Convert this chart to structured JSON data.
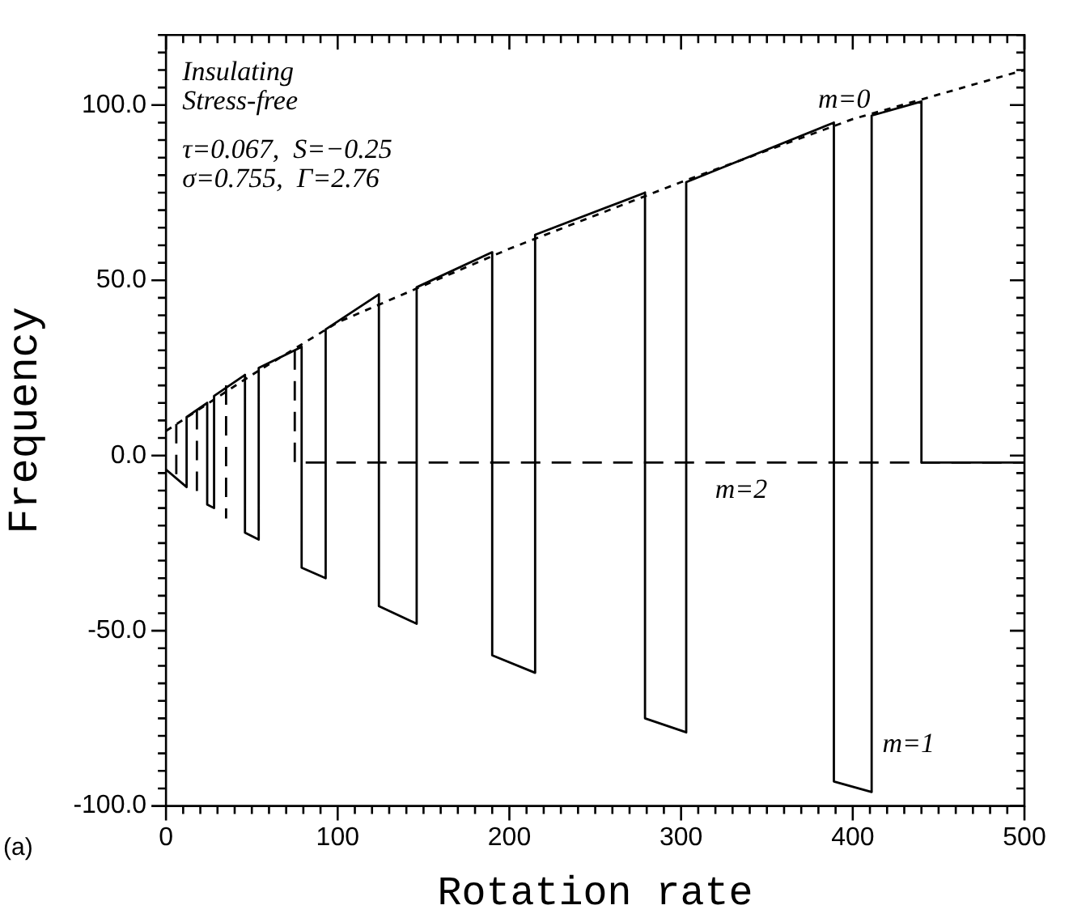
{
  "chart_data": {
    "type": "line",
    "xlabel": "Rotation rate",
    "ylabel": "Frequency",
    "xlim": [
      0,
      500
    ],
    "ylim": [
      -100,
      120
    ],
    "xticks": [
      {
        "value": 0,
        "label": "0"
      },
      {
        "value": 10,
        "label": null
      },
      {
        "value": 20,
        "label": null
      },
      {
        "value": 30,
        "label": null
      },
      {
        "value": 40,
        "label": null
      },
      {
        "value": 50,
        "label": null
      },
      {
        "value": 60,
        "label": null
      },
      {
        "value": 70,
        "label": null
      },
      {
        "value": 80,
        "label": null
      },
      {
        "value": 90,
        "label": null
      },
      {
        "value": 100,
        "label": "100"
      },
      {
        "value": 110,
        "label": null
      },
      {
        "value": 120,
        "label": null
      },
      {
        "value": 130,
        "label": null
      },
      {
        "value": 140,
        "label": null
      },
      {
        "value": 150,
        "label": null
      },
      {
        "value": 160,
        "label": null
      },
      {
        "value": 170,
        "label": null
      },
      {
        "value": 180,
        "label": null
      },
      {
        "value": 190,
        "label": null
      },
      {
        "value": 200,
        "label": "200"
      },
      {
        "value": 210,
        "label": null
      },
      {
        "value": 220,
        "label": null
      },
      {
        "value": 230,
        "label": null
      },
      {
        "value": 240,
        "label": null
      },
      {
        "value": 250,
        "label": null
      },
      {
        "value": 260,
        "label": null
      },
      {
        "value": 270,
        "label": null
      },
      {
        "value": 280,
        "label": null
      },
      {
        "value": 290,
        "label": null
      },
      {
        "value": 300,
        "label": "300"
      },
      {
        "value": 310,
        "label": null
      },
      {
        "value": 320,
        "label": null
      },
      {
        "value": 330,
        "label": null
      },
      {
        "value": 340,
        "label": null
      },
      {
        "value": 350,
        "label": null
      },
      {
        "value": 360,
        "label": null
      },
      {
        "value": 370,
        "label": null
      },
      {
        "value": 380,
        "label": null
      },
      {
        "value": 390,
        "label": null
      },
      {
        "value": 400,
        "label": "400"
      },
      {
        "value": 410,
        "label": null
      },
      {
        "value": 420,
        "label": null
      },
      {
        "value": 430,
        "label": null
      },
      {
        "value": 440,
        "label": null
      },
      {
        "value": 450,
        "label": null
      },
      {
        "value": 460,
        "label": null
      },
      {
        "value": 470,
        "label": null
      },
      {
        "value": 480,
        "label": null
      },
      {
        "value": 490,
        "label": null
      },
      {
        "value": 500,
        "label": "500"
      }
    ],
    "yticks": [
      {
        "value": -100,
        "label": "-100.0"
      },
      {
        "value": -95,
        "label": null
      },
      {
        "value": -90,
        "label": null
      },
      {
        "value": -85,
        "label": null
      },
      {
        "value": -80,
        "label": null
      },
      {
        "value": -75,
        "label": null
      },
      {
        "value": -70,
        "label": null
      },
      {
        "value": -65,
        "label": null
      },
      {
        "value": -60,
        "label": null
      },
      {
        "value": -55,
        "label": null
      },
      {
        "value": -50,
        "label": "-50.0"
      },
      {
        "value": -45,
        "label": null
      },
      {
        "value": -40,
        "label": null
      },
      {
        "value": -35,
        "label": null
      },
      {
        "value": -30,
        "label": null
      },
      {
        "value": -25,
        "label": null
      },
      {
        "value": -20,
        "label": null
      },
      {
        "value": -15,
        "label": null
      },
      {
        "value": -10,
        "label": null
      },
      {
        "value": -5,
        "label": null
      },
      {
        "value": 0,
        "label": "0.0"
      },
      {
        "value": 5,
        "label": null
      },
      {
        "value": 10,
        "label": null
      },
      {
        "value": 15,
        "label": null
      },
      {
        "value": 20,
        "label": null
      },
      {
        "value": 25,
        "label": null
      },
      {
        "value": 30,
        "label": null
      },
      {
        "value": 35,
        "label": null
      },
      {
        "value": 40,
        "label": null
      },
      {
        "value": 45,
        "label": null
      },
      {
        "value": 50,
        "label": "50.0"
      },
      {
        "value": 55,
        "label": null
      },
      {
        "value": 60,
        "label": null
      },
      {
        "value": 65,
        "label": null
      },
      {
        "value": 70,
        "label": null
      },
      {
        "value": 75,
        "label": null
      },
      {
        "value": 80,
        "label": null
      },
      {
        "value": 85,
        "label": null
      },
      {
        "value": 90,
        "label": null
      },
      {
        "value": 95,
        "label": null
      },
      {
        "value": 100,
        "label": "100.0"
      },
      {
        "value": 105,
        "label": null
      },
      {
        "value": 110,
        "label": null
      },
      {
        "value": 115,
        "label": null
      },
      {
        "value": 120,
        "label": null
      }
    ],
    "marker": "none",
    "legend": false,
    "series": [
      {
        "name": "m=1",
        "color": "#000000",
        "line_style": "solid",
        "x": [
          0,
          12,
          12,
          24,
          24,
          28,
          28,
          46,
          46,
          54,
          54,
          79,
          79,
          93,
          93,
          124,
          124,
          146,
          146,
          190,
          190,
          215,
          215,
          279,
          279,
          303,
          303,
          389,
          389,
          411,
          411,
          440,
          440,
          500
        ],
        "values": [
          -4,
          -9,
          11,
          15,
          -14,
          -15,
          17,
          23,
          -22,
          -24,
          25,
          31,
          -32,
          -35,
          36,
          46,
          -43,
          -48,
          48,
          58,
          -57,
          -62,
          63,
          75,
          -75,
          -79,
          78,
          95,
          -93,
          -96,
          97,
          101,
          -2,
          -2
        ]
      },
      {
        "name": "m=0",
        "color": "#000000",
        "line_style": "dotted",
        "x": [
          0,
          50,
          100,
          200,
          300,
          400,
          500
        ],
        "values": [
          7,
          23,
          38,
          59,
          78,
          96,
          110
        ]
      },
      {
        "color": "#000000",
        "line_style": "dashed",
        "x": [
          6,
          6
        ],
        "values": [
          9,
          -7
        ]
      },
      {
        "color": "#000000",
        "line_style": "dashed",
        "x": [
          18,
          18
        ],
        "values": [
          13,
          -11
        ]
      },
      {
        "color": "#000000",
        "line_style": "dashed",
        "x": [
          35,
          35
        ],
        "values": [
          20,
          -18
        ]
      },
      {
        "name": "m=2",
        "color": "#000000",
        "line_style": "dashed",
        "x": [
          75,
          75,
          500
        ],
        "values": [
          30,
          -2,
          -2
        ]
      }
    ],
    "annotations": [
      "Insulating",
      "Stress-free",
      "τ=0.067,  S=−0.25",
      "σ=0.755,  Γ=2.76",
      "(a)"
    ]
  }
}
